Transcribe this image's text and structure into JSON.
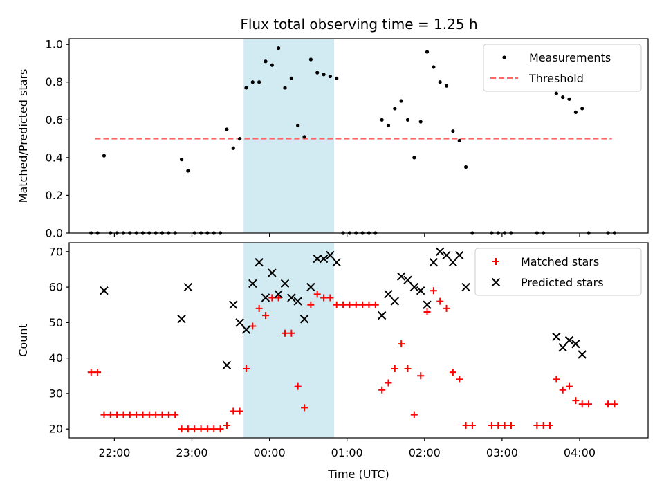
{
  "figure_title": "Flux total observing time = 1.25 h",
  "colors": {
    "shade": "#add8e6",
    "threshold": "#ff6666",
    "matched": "#ff0000",
    "predicted": "#000000",
    "measurement": "#000000"
  },
  "chart_data": [
    {
      "type": "scatter",
      "title": "Flux total observing time = 1.25 h",
      "xlabel": "",
      "ylabel": "Matched/Predicted stars",
      "xlim": [
        "21:25",
        "04:53"
      ],
      "ylim": [
        0,
        1.03
      ],
      "yticks": [
        "0.0",
        "0.2",
        "0.4",
        "0.6",
        "0.8",
        "1.0"
      ],
      "shaded_interval": [
        "23:40",
        "00:50"
      ],
      "legend": {
        "location": "upper right",
        "entries": [
          "Measurements",
          "Threshold"
        ]
      },
      "threshold": {
        "name": "Threshold",
        "value": 0.5,
        "x_range": [
          "21:45",
          "04:25"
        ]
      },
      "series": [
        {
          "name": "Measurements",
          "points": [
            [
              "21:42",
              0
            ],
            [
              "21:47",
              0
            ],
            [
              "21:52",
              0.41
            ],
            [
              "21:57",
              0
            ],
            [
              "22:02",
              0
            ],
            [
              "22:07",
              0
            ],
            [
              "22:12",
              0
            ],
            [
              "22:17",
              0
            ],
            [
              "22:22",
              0
            ],
            [
              "22:27",
              0
            ],
            [
              "22:32",
              0
            ],
            [
              "22:37",
              0
            ],
            [
              "22:42",
              0
            ],
            [
              "22:47",
              0
            ],
            [
              "22:52",
              0.39
            ],
            [
              "22:57",
              0.33
            ],
            [
              "23:02",
              0
            ],
            [
              "23:07",
              0
            ],
            [
              "23:12",
              0
            ],
            [
              "23:17",
              0
            ],
            [
              "23:22",
              0
            ],
            [
              "23:27",
              0.55
            ],
            [
              "23:32",
              0.45
            ],
            [
              "23:37",
              0.5
            ],
            [
              "23:42",
              0.77
            ],
            [
              "23:47",
              0.8
            ],
            [
              "23:52",
              0.8
            ],
            [
              "23:57",
              0.91
            ],
            [
              "00:02",
              0.89
            ],
            [
              "00:07",
              0.98
            ],
            [
              "00:12",
              0.77
            ],
            [
              "00:17",
              0.82
            ],
            [
              "00:22",
              0.57
            ],
            [
              "00:27",
              0.51
            ],
            [
              "00:32",
              0.92
            ],
            [
              "00:37",
              0.85
            ],
            [
              "00:42",
              0.84
            ],
            [
              "00:47",
              0.83
            ],
            [
              "00:52",
              0.82
            ],
            [
              "00:57",
              0
            ],
            [
              "01:02",
              0
            ],
            [
              "01:07",
              0
            ],
            [
              "01:12",
              0
            ],
            [
              "01:17",
              0
            ],
            [
              "01:22",
              0
            ],
            [
              "01:27",
              0.6
            ],
            [
              "01:32",
              0.57
            ],
            [
              "01:37",
              0.66
            ],
            [
              "01:42",
              0.7
            ],
            [
              "01:47",
              0.6
            ],
            [
              "01:52",
              0.4
            ],
            [
              "01:57",
              0.59
            ],
            [
              "02:02",
              0.96
            ],
            [
              "02:07",
              0.88
            ],
            [
              "02:12",
              0.8
            ],
            [
              "02:17",
              0.78
            ],
            [
              "02:22",
              0.54
            ],
            [
              "02:27",
              0.49
            ],
            [
              "02:32",
              0.35
            ],
            [
              "02:37",
              0
            ],
            [
              "02:52",
              0
            ],
            [
              "02:57",
              0
            ],
            [
              "03:02",
              0
            ],
            [
              "03:07",
              0
            ],
            [
              "03:27",
              0
            ],
            [
              "03:32",
              0
            ],
            [
              "03:42",
              0.74
            ],
            [
              "03:47",
              0.72
            ],
            [
              "03:52",
              0.71
            ],
            [
              "03:57",
              0.64
            ],
            [
              "04:02",
              0.66
            ],
            [
              "04:07",
              0
            ],
            [
              "04:22",
              0
            ],
            [
              "04:27",
              0
            ]
          ]
        }
      ]
    },
    {
      "type": "scatter",
      "title": "",
      "xlabel": "Time (UTC)",
      "ylabel": "Count",
      "xlim": [
        "21:25",
        "04:53"
      ],
      "ylim": [
        17.5,
        72.5
      ],
      "yticks": [
        "20",
        "30",
        "40",
        "50",
        "60",
        "70"
      ],
      "xticks": [
        "22:00",
        "23:00",
        "00:00",
        "01:00",
        "02:00",
        "03:00",
        "04:00"
      ],
      "shaded_interval": [
        "23:40",
        "00:50"
      ],
      "legend": {
        "location": "upper right",
        "entries": [
          "Matched stars",
          "Predicted stars"
        ]
      },
      "series": [
        {
          "name": "Matched stars",
          "points": [
            [
              "21:42",
              36
            ],
            [
              "21:47",
              36
            ],
            [
              "21:52",
              24
            ],
            [
              "21:57",
              24
            ],
            [
              "22:02",
              24
            ],
            [
              "22:07",
              24
            ],
            [
              "22:12",
              24
            ],
            [
              "22:17",
              24
            ],
            [
              "22:22",
              24
            ],
            [
              "22:27",
              24
            ],
            [
              "22:32",
              24
            ],
            [
              "22:37",
              24
            ],
            [
              "22:42",
              24
            ],
            [
              "22:47",
              24
            ],
            [
              "22:52",
              20
            ],
            [
              "22:57",
              20
            ],
            [
              "23:02",
              20
            ],
            [
              "23:07",
              20
            ],
            [
              "23:12",
              20
            ],
            [
              "23:17",
              20
            ],
            [
              "23:22",
              20
            ],
            [
              "23:27",
              21
            ],
            [
              "23:32",
              25
            ],
            [
              "23:37",
              25
            ],
            [
              "23:42",
              37
            ],
            [
              "23:47",
              49
            ],
            [
              "23:52",
              54
            ],
            [
              "23:57",
              52
            ],
            [
              "00:02",
              57
            ],
            [
              "00:07",
              57
            ],
            [
              "00:12",
              47
            ],
            [
              "00:17",
              47
            ],
            [
              "00:22",
              32
            ],
            [
              "00:27",
              26
            ],
            [
              "00:32",
              55
            ],
            [
              "00:37",
              58
            ],
            [
              "00:42",
              57
            ],
            [
              "00:47",
              57
            ],
            [
              "00:52",
              55
            ],
            [
              "00:57",
              55
            ],
            [
              "01:02",
              55
            ],
            [
              "01:07",
              55
            ],
            [
              "01:12",
              55
            ],
            [
              "01:17",
              55
            ],
            [
              "01:22",
              55
            ],
            [
              "01:27",
              31
            ],
            [
              "01:32",
              33
            ],
            [
              "01:37",
              37
            ],
            [
              "01:42",
              44
            ],
            [
              "01:47",
              37
            ],
            [
              "01:52",
              24
            ],
            [
              "01:57",
              35
            ],
            [
              "02:02",
              53
            ],
            [
              "02:07",
              59
            ],
            [
              "02:12",
              56
            ],
            [
              "02:17",
              54
            ],
            [
              "02:22",
              36
            ],
            [
              "02:27",
              34
            ],
            [
              "02:32",
              21
            ],
            [
              "02:37",
              21
            ],
            [
              "02:52",
              21
            ],
            [
              "02:57",
              21
            ],
            [
              "03:02",
              21
            ],
            [
              "03:07",
              21
            ],
            [
              "03:27",
              21
            ],
            [
              "03:32",
              21
            ],
            [
              "03:37",
              21
            ],
            [
              "03:42",
              34
            ],
            [
              "03:47",
              31
            ],
            [
              "03:52",
              32
            ],
            [
              "03:57",
              28
            ],
            [
              "04:02",
              27
            ],
            [
              "04:07",
              27
            ],
            [
              "04:22",
              27
            ],
            [
              "04:27",
              27
            ]
          ]
        },
        {
          "name": "Predicted stars",
          "points": [
            [
              "21:52",
              59
            ],
            [
              "22:52",
              51
            ],
            [
              "22:57",
              60
            ],
            [
              "23:27",
              38
            ],
            [
              "23:32",
              55
            ],
            [
              "23:37",
              50
            ],
            [
              "23:42",
              48
            ],
            [
              "23:47",
              61
            ],
            [
              "23:52",
              67
            ],
            [
              "23:57",
              57
            ],
            [
              "00:02",
              64
            ],
            [
              "00:07",
              58
            ],
            [
              "00:12",
              61
            ],
            [
              "00:17",
              57
            ],
            [
              "00:22",
              56
            ],
            [
              "00:27",
              51
            ],
            [
              "00:32",
              60
            ],
            [
              "00:37",
              68
            ],
            [
              "00:42",
              68
            ],
            [
              "00:47",
              69
            ],
            [
              "00:52",
              67
            ],
            [
              "01:27",
              52
            ],
            [
              "01:32",
              58
            ],
            [
              "01:37",
              56
            ],
            [
              "01:42",
              63
            ],
            [
              "01:47",
              62
            ],
            [
              "01:52",
              60
            ],
            [
              "01:57",
              59
            ],
            [
              "02:02",
              55
            ],
            [
              "02:07",
              67
            ],
            [
              "02:12",
              70
            ],
            [
              "02:17",
              69
            ],
            [
              "02:22",
              67
            ],
            [
              "02:27",
              69
            ],
            [
              "02:32",
              60
            ],
            [
              "03:42",
              46
            ],
            [
              "03:47",
              43
            ],
            [
              "03:52",
              45
            ],
            [
              "03:57",
              44
            ],
            [
              "04:02",
              41
            ]
          ]
        }
      ]
    }
  ]
}
